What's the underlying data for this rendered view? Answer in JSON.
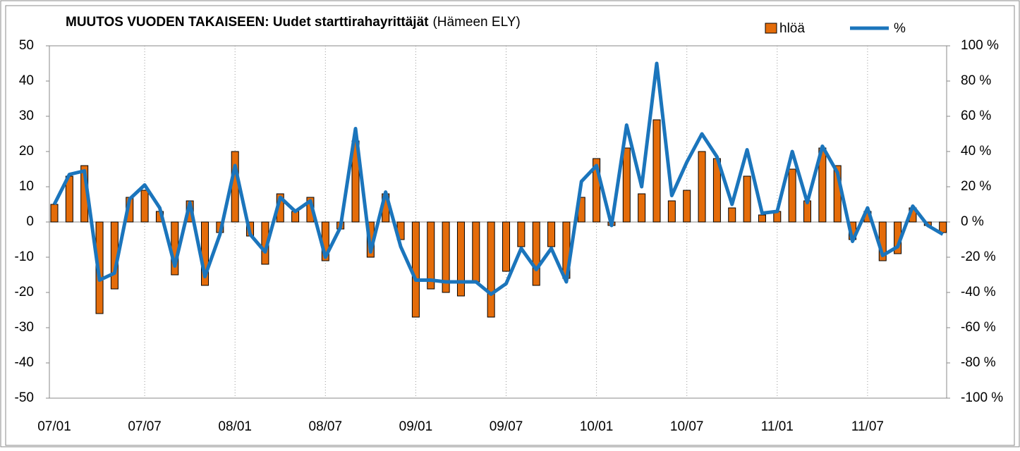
{
  "chart_data": {
    "type": "bar",
    "title": "MUUTOS VUODEN TAKAISEEN: Uudet starttirahayrittäjät",
    "subtitle": "(Hämeen ELY)",
    "categories": [
      "07/01",
      null,
      null,
      null,
      null,
      null,
      "07/07",
      null,
      null,
      null,
      null,
      null,
      "08/01",
      null,
      null,
      null,
      null,
      null,
      "08/07",
      null,
      null,
      null,
      null,
      null,
      "09/01",
      null,
      null,
      null,
      null,
      null,
      "09/07",
      null,
      null,
      null,
      null,
      null,
      "10/01",
      null,
      null,
      null,
      null,
      null,
      "10/07",
      null,
      null,
      null,
      null,
      null,
      "11/01",
      null,
      null,
      null,
      null,
      null,
      "11/07",
      null,
      null,
      null,
      null,
      null
    ],
    "series": [
      {
        "name": "hlöä",
        "type": "bar",
        "color": "#e46c0a",
        "values": [
          5,
          13,
          16,
          -26,
          -19,
          7,
          9,
          3,
          -15,
          6,
          -18,
          -3,
          20,
          -4,
          -12,
          8,
          3,
          7,
          -11,
          -2,
          23,
          -10,
          8,
          -5,
          -27,
          -19,
          -20,
          -21,
          -17,
          -27,
          -14,
          -7,
          -18,
          -7,
          -16,
          7,
          18,
          -1,
          21,
          8,
          29,
          6,
          9,
          20,
          18,
          4,
          13,
          2,
          3,
          15,
          6,
          21,
          16,
          -5,
          3,
          -11,
          -9,
          4,
          -1,
          -3
        ]
      },
      {
        "name": "%",
        "type": "line",
        "axis": "y2",
        "color": "#1b75bc",
        "values": [
          10,
          27,
          29,
          -33,
          -29,
          13,
          21,
          8,
          -25,
          11,
          -31,
          -7,
          32,
          -7,
          -17,
          14,
          6,
          12,
          -20,
          -3,
          53,
          -17,
          17,
          -14,
          -33,
          -33,
          -34,
          -34,
          -34,
          -41,
          -35,
          -15,
          -27,
          -15,
          -34,
          23,
          32,
          -2,
          55,
          20,
          90,
          15,
          34,
          50,
          37,
          10,
          41,
          5,
          6,
          40,
          11,
          43,
          28,
          -11,
          8,
          -19,
          -14,
          9,
          -2,
          -7
        ]
      }
    ],
    "ylim": [
      -50,
      50
    ],
    "yticks": [
      -50,
      -40,
      -30,
      -20,
      -10,
      0,
      10,
      20,
      30,
      40,
      50
    ],
    "y2lim": [
      -100,
      100
    ],
    "y2ticks": [
      {
        "value": -100,
        "label": "-100 %"
      },
      {
        "value": -80,
        "label": "-80 %"
      },
      {
        "value": -60,
        "label": "-60 %"
      },
      {
        "value": -40,
        "label": "-40 %"
      },
      {
        "value": -20,
        "label": "-20 %"
      },
      {
        "value": 0,
        "label": "0 %"
      },
      {
        "value": 20,
        "label": "20 %"
      },
      {
        "value": 40,
        "label": "40 %"
      },
      {
        "value": 60,
        "label": "60 %"
      },
      {
        "value": 80,
        "label": "80 %"
      },
      {
        "value": 100,
        "label": "100 %"
      }
    ],
    "grid": true,
    "legend": "top-right"
  }
}
